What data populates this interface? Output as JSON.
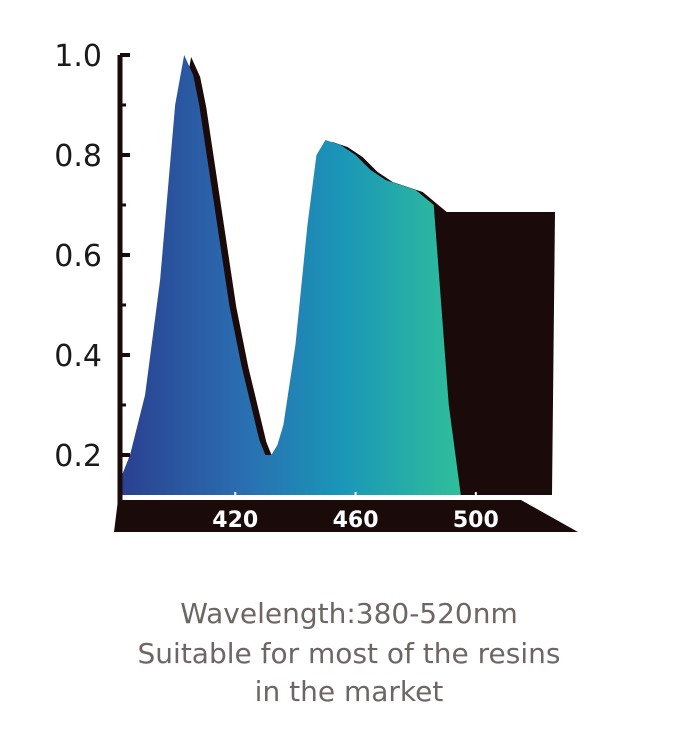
{
  "chart_data": {
    "type": "area",
    "title": "",
    "xlabel": "",
    "ylabel": "",
    "x_tick_labels": [
      "420",
      "460",
      "500"
    ],
    "y_tick_labels": [
      "1.0",
      "0.8",
      "0.6",
      "0.4",
      "0.2"
    ],
    "x_ticks": [
      420,
      460,
      500
    ],
    "y_ticks": [
      1.0,
      0.8,
      0.6,
      0.4,
      0.2
    ],
    "xlim": [
      381,
      524
    ],
    "ylim": [
      0.11,
      1.0
    ],
    "grid": false,
    "series": [
      {
        "x": [
          381,
          385,
          390,
          395,
          400,
          403,
          406,
          408,
          410,
          414,
          418,
          422,
          426,
          428,
          430,
          432,
          434,
          436,
          440,
          444,
          447,
          450,
          455,
          460,
          465,
          470,
          475,
          480,
          486,
          488,
          490,
          492,
          494,
          496,
          497,
          498,
          500,
          505,
          510,
          515,
          520,
          524
        ],
        "y": [
          0.14,
          0.2,
          0.32,
          0.55,
          0.9,
          1.0,
          0.96,
          0.9,
          0.82,
          0.66,
          0.5,
          0.38,
          0.28,
          0.23,
          0.2,
          0.2,
          0.22,
          0.26,
          0.42,
          0.66,
          0.8,
          0.83,
          0.82,
          0.8,
          0.77,
          0.75,
          0.74,
          0.73,
          0.7,
          0.69,
          0.69,
          0.69,
          0.69,
          0.69,
          0.69,
          0.69,
          0.69,
          0.69,
          0.69,
          0.69,
          0.69,
          0.69
        ]
      }
    ]
  },
  "caption": {
    "line1": "Wavelength:380-520nm",
    "line2": "Suitable for most of the resins",
    "line3": "in the market"
  }
}
